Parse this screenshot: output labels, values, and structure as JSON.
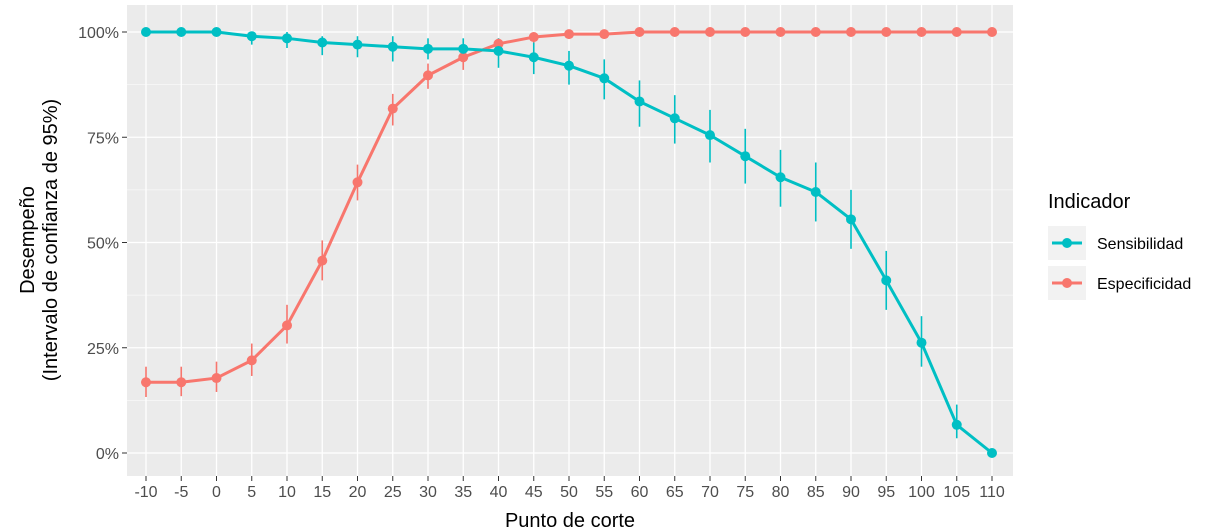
{
  "chart_data": {
    "type": "line",
    "xlabel": "Punto de corte",
    "ylabel_line1": "Desempeño",
    "ylabel_line2": "(Intervalo de confianza de 95%)",
    "x": [
      -10,
      -5,
      0,
      5,
      10,
      15,
      20,
      25,
      30,
      35,
      40,
      45,
      50,
      55,
      60,
      65,
      70,
      75,
      80,
      85,
      90,
      95,
      100,
      105,
      110
    ],
    "x_tick_labels": [
      "-10",
      "-5",
      "0",
      "5",
      "10",
      "15",
      "20",
      "25",
      "30",
      "35",
      "40",
      "45",
      "50",
      "55",
      "60",
      "65",
      "70",
      "75",
      "80",
      "85",
      "90",
      "95",
      "100",
      "105",
      "110"
    ],
    "ylim": [
      0,
      1
    ],
    "y_ticks": [
      0,
      0.25,
      0.5,
      0.75,
      1.0
    ],
    "y_tick_labels": [
      "0%",
      "25%",
      "50%",
      "75%",
      "100%"
    ],
    "grid": true,
    "legend": {
      "title": "Indicador",
      "position": "right"
    },
    "series": [
      {
        "name": "Sensibilidad",
        "color": "#00BFC4",
        "values": [
          1.0,
          1.0,
          1.0,
          0.99,
          0.985,
          0.975,
          0.97,
          0.965,
          0.96,
          0.96,
          0.955,
          0.94,
          0.92,
          0.89,
          0.835,
          0.795,
          0.755,
          0.705,
          0.655,
          0.62,
          0.555,
          0.41,
          0.262,
          0.067,
          0.0
        ],
        "lower": [
          1.0,
          1.0,
          1.0,
          0.97,
          0.962,
          0.945,
          0.94,
          0.93,
          0.935,
          0.935,
          0.915,
          0.9,
          0.875,
          0.84,
          0.775,
          0.735,
          0.69,
          0.64,
          0.585,
          0.55,
          0.485,
          0.34,
          0.205,
          0.035,
          0.0
        ],
        "upper": [
          1.0,
          1.0,
          1.0,
          1.0,
          1.0,
          0.99,
          0.99,
          0.99,
          0.985,
          0.985,
          0.985,
          0.975,
          0.955,
          0.935,
          0.885,
          0.85,
          0.815,
          0.77,
          0.72,
          0.69,
          0.625,
          0.48,
          0.325,
          0.115,
          0.01
        ]
      },
      {
        "name": "Especificidad",
        "color": "#F8766D",
        "values": [
          0.168,
          0.168,
          0.178,
          0.22,
          0.303,
          0.457,
          0.643,
          0.818,
          0.897,
          0.94,
          0.972,
          0.988,
          0.995,
          0.995,
          1.0,
          1.0,
          1.0,
          1.0,
          1.0,
          1.0,
          1.0,
          1.0,
          1.0,
          1.0,
          1.0
        ],
        "lower": [
          0.133,
          0.135,
          0.145,
          0.183,
          0.26,
          0.41,
          0.6,
          0.778,
          0.865,
          0.91,
          0.955,
          0.975,
          0.99,
          0.99,
          1.0,
          1.0,
          1.0,
          1.0,
          1.0,
          1.0,
          1.0,
          1.0,
          1.0,
          1.0,
          1.0
        ],
        "upper": [
          0.205,
          0.205,
          0.217,
          0.26,
          0.352,
          0.505,
          0.685,
          0.853,
          0.925,
          0.965,
          0.985,
          0.997,
          1.0,
          1.0,
          1.0,
          1.0,
          1.0,
          1.0,
          1.0,
          1.0,
          1.0,
          1.0,
          1.0,
          1.0,
          1.0
        ]
      }
    ]
  }
}
